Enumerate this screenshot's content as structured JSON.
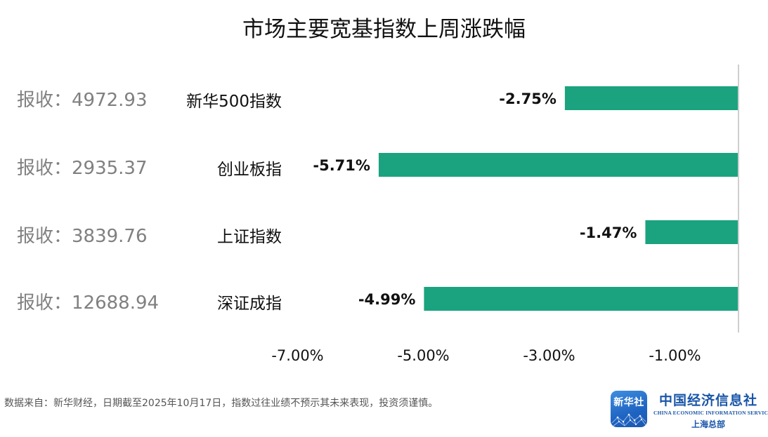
{
  "title": "市场主要宽基指数上周涨跌幅",
  "chart_data": {
    "type": "bar",
    "orientation": "horizontal",
    "title": "市场主要宽基指数上周涨跌幅",
    "categories": [
      "新华500指数",
      "创业板指",
      "上证指数",
      "深证成指"
    ],
    "values": [
      -2.75,
      -5.71,
      -1.47,
      -4.99
    ],
    "value_labels": [
      "-2.75%",
      "-5.71%",
      "-1.47%",
      "-4.99%"
    ],
    "close_labels": [
      "报收：4972.93",
      "报收：2935.37",
      "报收：3839.76",
      "报收：12688.94"
    ],
    "x_ticks": [
      -7,
      -5,
      -3,
      -1
    ],
    "x_tick_labels": [
      "-7.00%",
      "-5.00%",
      "-3.00%",
      "-1.00%"
    ],
    "xlim": [
      -7.6,
      0
    ],
    "bar_color": "#1aa37e",
    "grid": false,
    "legend": false
  },
  "footnote": "数据来自：新华财经，日期截至2025年10月17日，指数过往业绩不预示其未来表现，投资须谨慎。",
  "logo": {
    "text": "新华社",
    "icon": "xinhua-logo-icon"
  },
  "org": {
    "name_cn": "中国经济信息社",
    "name_en": "CHINA ECONOMIC INFORMATION SERVICE",
    "sub": "上海总部"
  }
}
